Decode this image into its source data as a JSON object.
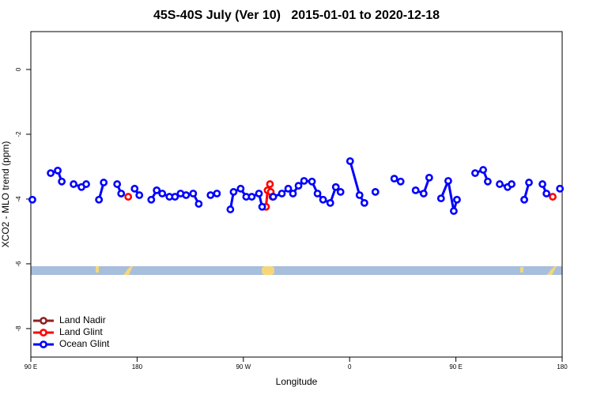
{
  "chart_data": {
    "type": "line",
    "title": "45S-40S July (Ver 10)   2015-01-01 to 2020-12-18",
    "x_label": "Longitude",
    "y_label": "XCO2 - MLO trend (ppm)",
    "xlim": [
      90,
      540
    ],
    "ylim": [
      -8.88,
      1.17
    ],
    "xticks": [
      {
        "value": 90,
        "label": "90 E"
      },
      180,
      {
        "value": 270,
        "label": "90 W"
      },
      {
        "value": 360,
        "label": "0"
      },
      {
        "value": 450,
        "label": "90 E"
      },
      {
        "value": 540,
        "label": "180"
      }
    ],
    "yticks": [
      0,
      -2,
      -4,
      -6,
      -8
    ],
    "legend": "bottom-left",
    "series": [
      {
        "name": "Land Nadir",
        "color": "#8b2323",
        "x": [],
        "values": []
      },
      {
        "name": "Land Glint",
        "color": "#ff0000",
        "x": [
          172.5,
          null,
          289.2,
          290.5,
          292.5,
          293.2,
          294.6,
          null,
          532.0
        ],
        "values": [
          -3.93,
          null,
          -4.24,
          -3.73,
          -3.54,
          -3.78,
          -3.93,
          null,
          -3.93
        ]
      },
      {
        "name": "Ocean Glint",
        "color": "#0000ff",
        "x": [
          91.3,
          null,
          106.8,
          112.8,
          116.2,
          null,
          126.2,
          132.9,
          136.9,
          null,
          147.7,
          151.7,
          null,
          163.1,
          166.5,
          null,
          177.9,
          181.9,
          null,
          192.0,
          196.6,
          201.3,
          207.4,
          212.1,
          216.8,
          221.5,
          227.5,
          232.2,
          null,
          242.2,
          247.6,
          null,
          259.0,
          261.7,
          267.7,
          272.4,
          277.1,
          283.2,
          285.9,
          null,
          295.3,
          302.6,
          308.0,
          312.0,
          316.7,
          321.4,
          328.1,
          332.8,
          337.5,
          343.6,
          348.3,
          352.3,
          null,
          360.4,
          368.4,
          372.5,
          null,
          381.8,
          null,
          397.8,
          403.2,
          null,
          415.9,
          422.7,
          427.4,
          null,
          437.4,
          443.5,
          448.2,
          450.9,
          null,
          466.3,
          473.1,
          477.0,
          null,
          487.1,
          493.8,
          497.2,
          null,
          507.9,
          511.9,
          null,
          523.3,
          526.7,
          null,
          538.1
        ],
        "values": [
          -4.02,
          null,
          -3.2,
          -3.12,
          -3.46,
          null,
          -3.54,
          -3.63,
          -3.54,
          null,
          -4.02,
          -3.49,
          null,
          -3.54,
          -3.83,
          null,
          -3.68,
          -3.88,
          null,
          -4.02,
          -3.73,
          -3.83,
          -3.93,
          -3.93,
          -3.83,
          -3.88,
          -3.83,
          -4.15,
          null,
          -3.88,
          -3.83,
          null,
          -4.32,
          -3.78,
          -3.68,
          -3.93,
          -3.93,
          -3.83,
          -4.24,
          null,
          -3.93,
          -3.83,
          -3.68,
          -3.83,
          -3.59,
          -3.44,
          -3.46,
          -3.83,
          -4.02,
          -4.12,
          -3.63,
          -3.78,
          null,
          -2.83,
          -3.88,
          -4.12,
          null,
          -3.78,
          null,
          -3.37,
          -3.46,
          null,
          -3.73,
          -3.83,
          -3.34,
          null,
          -3.98,
          -3.44,
          -4.37,
          -4.02,
          null,
          -3.2,
          -3.1,
          -3.46,
          null,
          -3.54,
          -3.63,
          -3.54,
          null,
          -4.02,
          -3.49,
          null,
          -3.54,
          -3.83,
          null,
          -3.68
        ]
      }
    ]
  }
}
